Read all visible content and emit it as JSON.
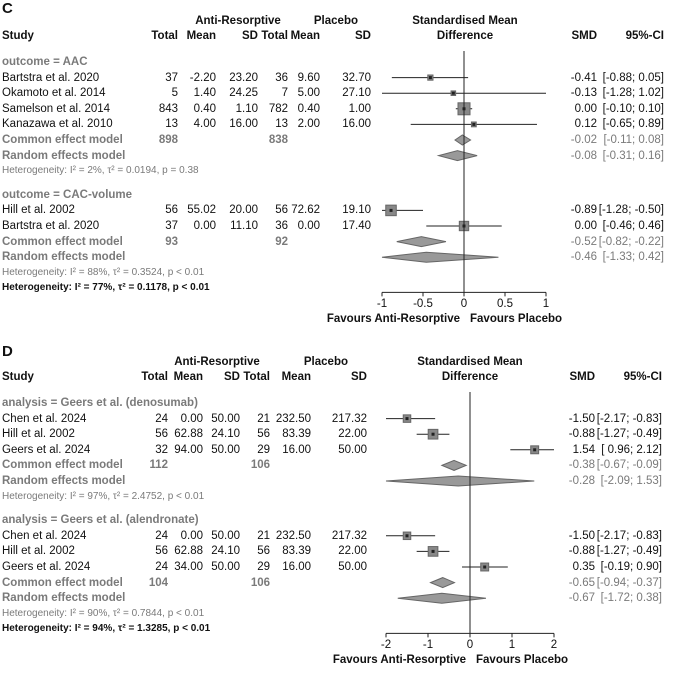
{
  "chart_data": [
    {
      "type": "forest",
      "panel": "C",
      "columns": {
        "study": "Study",
        "group1": "Anti-Resorptive",
        "group2": "Placebo",
        "total": "Total",
        "mean": "Mean",
        "sd": "SD",
        "effect_header_1": "Standardised Mean",
        "effect_header_2": "Difference",
        "smd": "SMD",
        "ci": "95%-CI"
      },
      "xlim": [
        -1,
        1
      ],
      "ticks": [
        "-1",
        "-0.5",
        "0",
        "0.5",
        "1"
      ],
      "tick_values": [
        -1,
        -0.5,
        0,
        0.5,
        1
      ],
      "xlabel_left": "Favours Anti-Resorptive",
      "xlabel_right": "Favours Placebo",
      "groups": [
        {
          "label": "outcome = AAC",
          "studies": [
            {
              "name": "Bartstra et al. 2020",
              "n1": "37",
              "m1": "-2.20",
              "sd1": "23.20",
              "n2": "36",
              "m2": "9.60",
              "sd2": "32.70",
              "smd": -0.41,
              "lo": -0.88,
              "hi": 0.05,
              "smd_text": "-0.41",
              "ci_text": "[-0.88; 0.05]",
              "w": 0.06
            },
            {
              "name": "Okamoto et al. 2014",
              "n1": "5",
              "m1": "1.40",
              "sd1": "24.25",
              "n2": "7",
              "m2": "5.00",
              "sd2": "27.10",
              "smd": -0.13,
              "lo": -1.28,
              "hi": 1.02,
              "smd_text": "-0.13",
              "ci_text": "[-1.28; 1.02]",
              "w": 0.03
            },
            {
              "name": "Samelson et al. 2014",
              "n1": "843",
              "m1": "0.40",
              "sd1": "1.10",
              "n2": "782",
              "m2": "0.40",
              "sd2": "1.00",
              "smd": 0.0,
              "lo": -0.1,
              "hi": 0.1,
              "smd_text": "0.00",
              "ci_text": "[-0.10; 0.10]",
              "w": 1.0
            },
            {
              "name": "Kanazawa et al. 2010",
              "n1": "13",
              "m1": "4.00",
              "sd1": "16.00",
              "n2": "13",
              "m2": "2.00",
              "sd2": "16.00",
              "smd": 0.12,
              "lo": -0.65,
              "hi": 0.89,
              "smd_text": "0.12",
              "ci_text": "[-0.65; 0.89]",
              "w": 0.04
            }
          ],
          "common": {
            "label": "Common effect model",
            "n1": "898",
            "n2": "838",
            "smd": -0.02,
            "lo": -0.11,
            "hi": 0.08,
            "smd_text": "-0.02",
            "ci_text": "[-0.11; 0.08]"
          },
          "random": {
            "label": "Random effects model",
            "smd": -0.08,
            "lo": -0.31,
            "hi": 0.16,
            "smd_text": "-0.08",
            "ci_text": "[-0.31; 0.16]"
          },
          "heterogeneity": "Heterogeneity: I² = 2%, τ² = 0.0194, p = 0.38"
        },
        {
          "label": "outcome = CAC-volume",
          "studies": [
            {
              "name": "Hill et al. 2002",
              "n1": "56",
              "m1": "55.02",
              "sd1": "20.00",
              "n2": "56",
              "m2": "72.62",
              "sd2": "19.10",
              "smd": -0.89,
              "lo": -1.28,
              "hi": -0.5,
              "smd_text": "-0.89",
              "ci_text": "[-1.28; -0.50]",
              "w": 0.7
            },
            {
              "name": "Bartstra et al. 2020",
              "n1": "37",
              "m1": "0.00",
              "sd1": "11.10",
              "n2": "36",
              "m2": "0.00",
              "sd2": "17.40",
              "smd": 0.0,
              "lo": -0.46,
              "hi": 0.46,
              "smd_text": "0.00",
              "ci_text": "[-0.46; 0.46]",
              "w": 0.5
            }
          ],
          "common": {
            "label": "Common effect model",
            "n1": "93",
            "n2": "92",
            "smd": -0.52,
            "lo": -0.82,
            "hi": -0.22,
            "smd_text": "-0.52",
            "ci_text": "[-0.82; -0.22]"
          },
          "random": {
            "label": "Random effects model",
            "smd": -0.46,
            "lo": -1.33,
            "hi": 0.42,
            "smd_text": "-0.46",
            "ci_text": "[-1.33; 0.42]"
          },
          "heterogeneity": "Heterogeneity: I² = 88%, τ² = 0.3524, p < 0.01"
        }
      ],
      "overall_heterogeneity": "Heterogeneity: I² = 77%, τ² = 0.1178, p < 0.01"
    },
    {
      "type": "forest",
      "panel": "D",
      "columns": {
        "study": "Study",
        "group1": "Anti-Resorptive",
        "group2": "Placebo",
        "total": "Total",
        "mean": "Mean",
        "sd": "SD",
        "effect_header_1": "Standardised Mean",
        "effect_header_2": "Difference",
        "smd": "SMD",
        "ci": "95%-CI"
      },
      "xlim": [
        -2,
        2
      ],
      "ticks": [
        "-2",
        "-1",
        "0",
        "1",
        "2"
      ],
      "tick_values": [
        -2,
        -1,
        0,
        1,
        2
      ],
      "xlabel_left": "Favours Anti-Resorptive",
      "xlabel_right": "Favours Placebo",
      "groups": [
        {
          "label": "analysis = Geers et al. (denosumab)",
          "studies": [
            {
              "name": "Chen et al. 2024",
              "n1": "24",
              "m1": "0.00",
              "sd1": "50.00",
              "n2": "21",
              "m2": "232.50",
              "sd2": "217.32",
              "smd": -1.5,
              "lo": -2.17,
              "hi": -0.83,
              "smd_text": "-1.50",
              "ci_text": "[-2.17; -0.83]",
              "w": 0.25
            },
            {
              "name": "Hill et al. 2002",
              "n1": "56",
              "m1": "62.88",
              "sd1": "24.10",
              "n2": "56",
              "m2": "83.39",
              "sd2": "22.00",
              "smd": -0.88,
              "lo": -1.27,
              "hi": -0.49,
              "smd_text": "-0.88",
              "ci_text": "[-1.27; -0.49]",
              "w": 0.55
            },
            {
              "name": "Geers et al. 2024",
              "n1": "32",
              "m1": "94.00",
              "sd1": "50.00",
              "n2": "29",
              "m2": "16.00",
              "sd2": "50.00",
              "smd": 1.54,
              "lo": 0.96,
              "hi": 2.12,
              "smd_text": "1.54",
              "ci_text": "[ 0.96; 2.12]",
              "w": 0.3
            }
          ],
          "common": {
            "label": "Common effect model",
            "n1": "112",
            "n2": "106",
            "smd": -0.38,
            "lo": -0.67,
            "hi": -0.09,
            "smd_text": "-0.38",
            "ci_text": "[-0.67; -0.09]"
          },
          "random": {
            "label": "Random effects model",
            "smd": -0.28,
            "lo": -2.09,
            "hi": 1.53,
            "smd_text": "-0.28",
            "ci_text": "[-2.09; 1.53]"
          },
          "heterogeneity": "Heterogeneity: I² = 97%, τ² = 2.4752, p < 0.01"
        },
        {
          "label": "analysis = Geers et al. (alendronate)",
          "studies": [
            {
              "name": "Chen et al. 2024",
              "n1": "24",
              "m1": "0.00",
              "sd1": "50.00",
              "n2": "21",
              "m2": "232.50",
              "sd2": "217.32",
              "smd": -1.5,
              "lo": -2.17,
              "hi": -0.83,
              "smd_text": "-1.50",
              "ci_text": "[-2.17; -0.83]",
              "w": 0.25
            },
            {
              "name": "Hill et al. 2002",
              "n1": "56",
              "m1": "62.88",
              "sd1": "24.10",
              "n2": "56",
              "m2": "83.39",
              "sd2": "22.00",
              "smd": -0.88,
              "lo": -1.27,
              "hi": -0.49,
              "smd_text": "-0.88",
              "ci_text": "[-1.27; -0.49]",
              "w": 0.55
            },
            {
              "name": "Geers et al. 2024",
              "n1": "24",
              "m1": "34.00",
              "sd1": "50.00",
              "n2": "29",
              "m2": "16.00",
              "sd2": "50.00",
              "smd": 0.35,
              "lo": -0.19,
              "hi": 0.9,
              "smd_text": "0.35",
              "ci_text": "[-0.19; 0.90]",
              "w": 0.3
            }
          ],
          "common": {
            "label": "Common effect model",
            "n1": "104",
            "n2": "106",
            "smd": -0.65,
            "lo": -0.94,
            "hi": -0.37,
            "smd_text": "-0.65",
            "ci_text": "[-0.94; -0.37]"
          },
          "random": {
            "label": "Random effects model",
            "smd": -0.67,
            "lo": -1.72,
            "hi": 0.38,
            "smd_text": "-0.67",
            "ci_text": "[-1.72; 0.38]"
          },
          "heterogeneity": "Heterogeneity: I² = 90%, τ² = 0.7844, p < 0.01"
        }
      ],
      "overall_heterogeneity": "Heterogeneity: I² = 94%, τ² = 1.3285, p < 0.01"
    }
  ]
}
